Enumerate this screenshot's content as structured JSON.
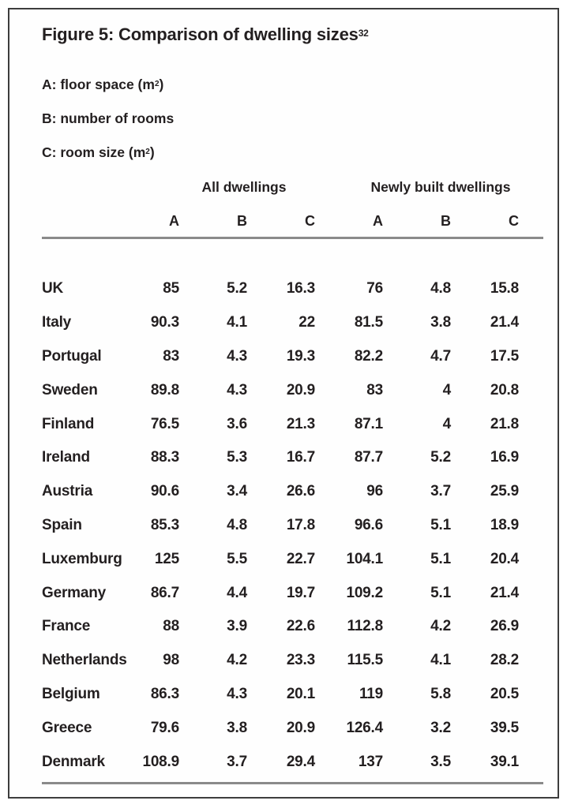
{
  "figure": {
    "title": "Figure 5: Comparison of dwelling sizes",
    "title_superscript": "32"
  },
  "legend": [
    {
      "label": "A:",
      "text": " floor space (m",
      "superscript": "2",
      "close": ")"
    },
    {
      "label": "B:",
      "text": " number of rooms",
      "superscript": "",
      "close": ""
    },
    {
      "label": "C:",
      "text": " room size (m",
      "superscript": "2",
      "close": ")"
    }
  ],
  "table": {
    "group_headers": [
      "All dwellings",
      "Newly built dwellings"
    ],
    "column_letters": [
      "A",
      "B",
      "C",
      "A",
      "B",
      "C"
    ],
    "rows": [
      {
        "country": "UK",
        "values": [
          "85",
          "5.2",
          "16.3",
          "76",
          "4.8",
          "15.8"
        ]
      },
      {
        "country": "Italy",
        "values": [
          "90.3",
          "4.1",
          "22",
          "81.5",
          "3.8",
          "21.4"
        ]
      },
      {
        "country": "Portugal",
        "values": [
          "83",
          "4.3",
          "19.3",
          "82.2",
          "4.7",
          "17.5"
        ]
      },
      {
        "country": "Sweden",
        "values": [
          "89.8",
          "4.3",
          "20.9",
          "83",
          "4",
          "20.8"
        ]
      },
      {
        "country": "Finland",
        "values": [
          "76.5",
          "3.6",
          "21.3",
          "87.1",
          "4",
          "21.8"
        ]
      },
      {
        "country": "Ireland",
        "values": [
          "88.3",
          "5.3",
          "16.7",
          "87.7",
          "5.2",
          "16.9"
        ]
      },
      {
        "country": "Austria",
        "values": [
          "90.6",
          "3.4",
          "26.6",
          "96",
          "3.7",
          "25.9"
        ]
      },
      {
        "country": "Spain",
        "values": [
          "85.3",
          "4.8",
          "17.8",
          "96.6",
          "5.1",
          "18.9"
        ]
      },
      {
        "country": "Luxemburg",
        "values": [
          "125",
          "5.5",
          "22.7",
          "104.1",
          "5.1",
          "20.4"
        ]
      },
      {
        "country": "Germany",
        "values": [
          "86.7",
          "4.4",
          "19.7",
          "109.2",
          "5.1",
          "21.4"
        ]
      },
      {
        "country": "France",
        "values": [
          "88",
          "3.9",
          "22.6",
          "112.8",
          "4.2",
          "26.9"
        ]
      },
      {
        "country": "Netherlands",
        "values": [
          "98",
          "4.2",
          "23.3",
          "115.5",
          "4.1",
          "28.2"
        ]
      },
      {
        "country": "Belgium",
        "values": [
          "86.3",
          "4.3",
          "20.1",
          "119",
          "5.8",
          "20.5"
        ]
      },
      {
        "country": "Greece",
        "values": [
          "79.6",
          "3.8",
          "20.9",
          "126.4",
          "3.2",
          "39.5"
        ]
      },
      {
        "country": "Denmark",
        "values": [
          "108.9",
          "3.7",
          "29.4",
          "137",
          "3.5",
          "39.1"
        ]
      }
    ]
  },
  "colors": {
    "text": "#231f20",
    "rule": "#8a8a8a",
    "border": "#3d3d3d",
    "background": "#fefefe"
  }
}
